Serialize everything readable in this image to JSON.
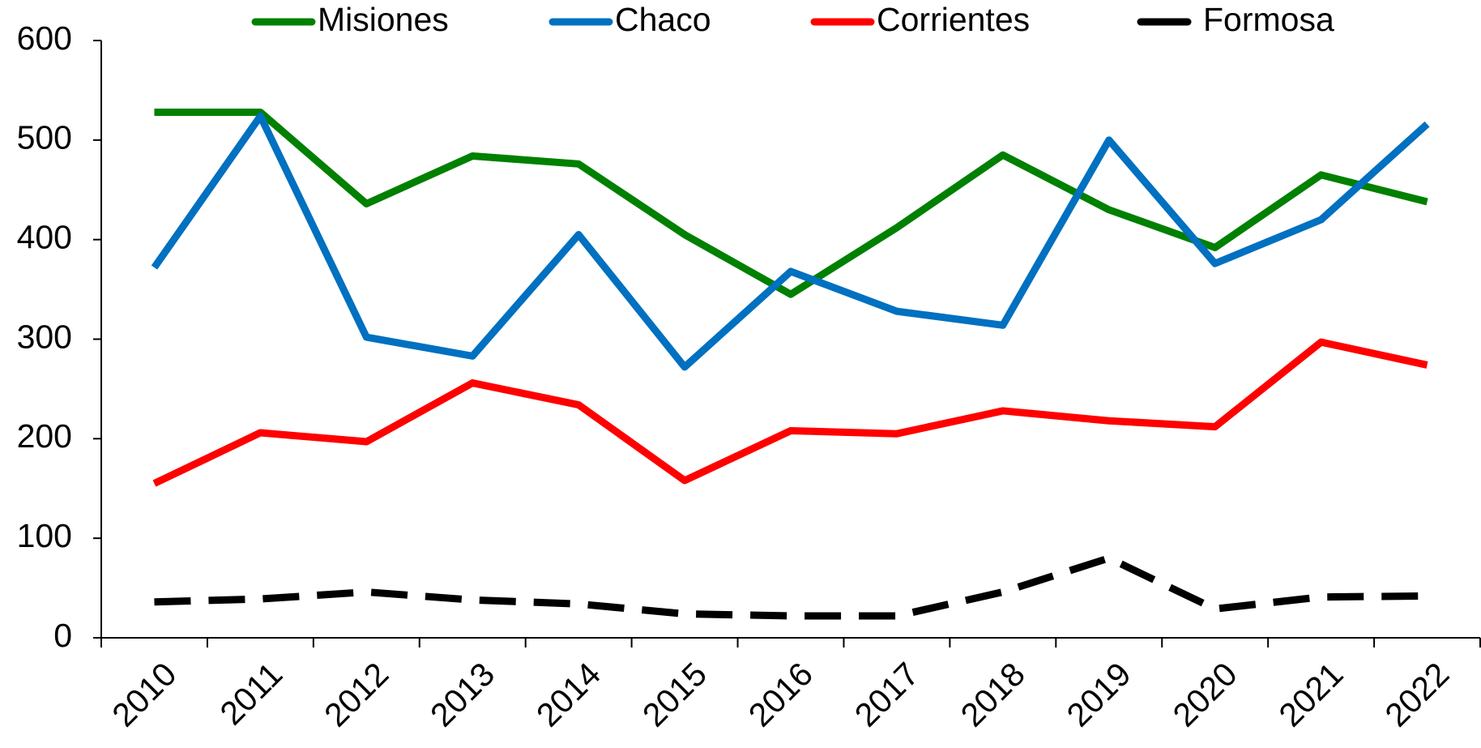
{
  "chart_data": {
    "type": "line",
    "categories": [
      "2010",
      "2011",
      "2012",
      "2013",
      "2014",
      "2015",
      "2016",
      "2017",
      "2018",
      "2019",
      "2020",
      "2021",
      "2022"
    ],
    "series": [
      {
        "name": "Misiones",
        "color": "#008000",
        "dash": false,
        "values": [
          528,
          528,
          436,
          484,
          476,
          405,
          345,
          412,
          485,
          430,
          392,
          465,
          438
        ]
      },
      {
        "name": "Chaco",
        "color": "#0070c0",
        "dash": false,
        "values": [
          372,
          524,
          302,
          283,
          405,
          272,
          368,
          328,
          314,
          500,
          376,
          420,
          516
        ]
      },
      {
        "name": "Corrientes",
        "color": "#ff0000",
        "dash": false,
        "values": [
          155,
          206,
          197,
          256,
          234,
          158,
          208,
          205,
          228,
          218,
          212,
          297,
          274
        ]
      },
      {
        "name": "Formosa",
        "color": "#000000",
        "dash": true,
        "values": [
          36,
          39,
          46,
          38,
          34,
          24,
          22,
          22,
          46,
          80,
          29,
          41,
          42
        ]
      }
    ],
    "ylim": [
      0,
      600
    ],
    "yticks": [
      0,
      100,
      200,
      300,
      400,
      500,
      600
    ],
    "grid": false,
    "legend": "top"
  }
}
